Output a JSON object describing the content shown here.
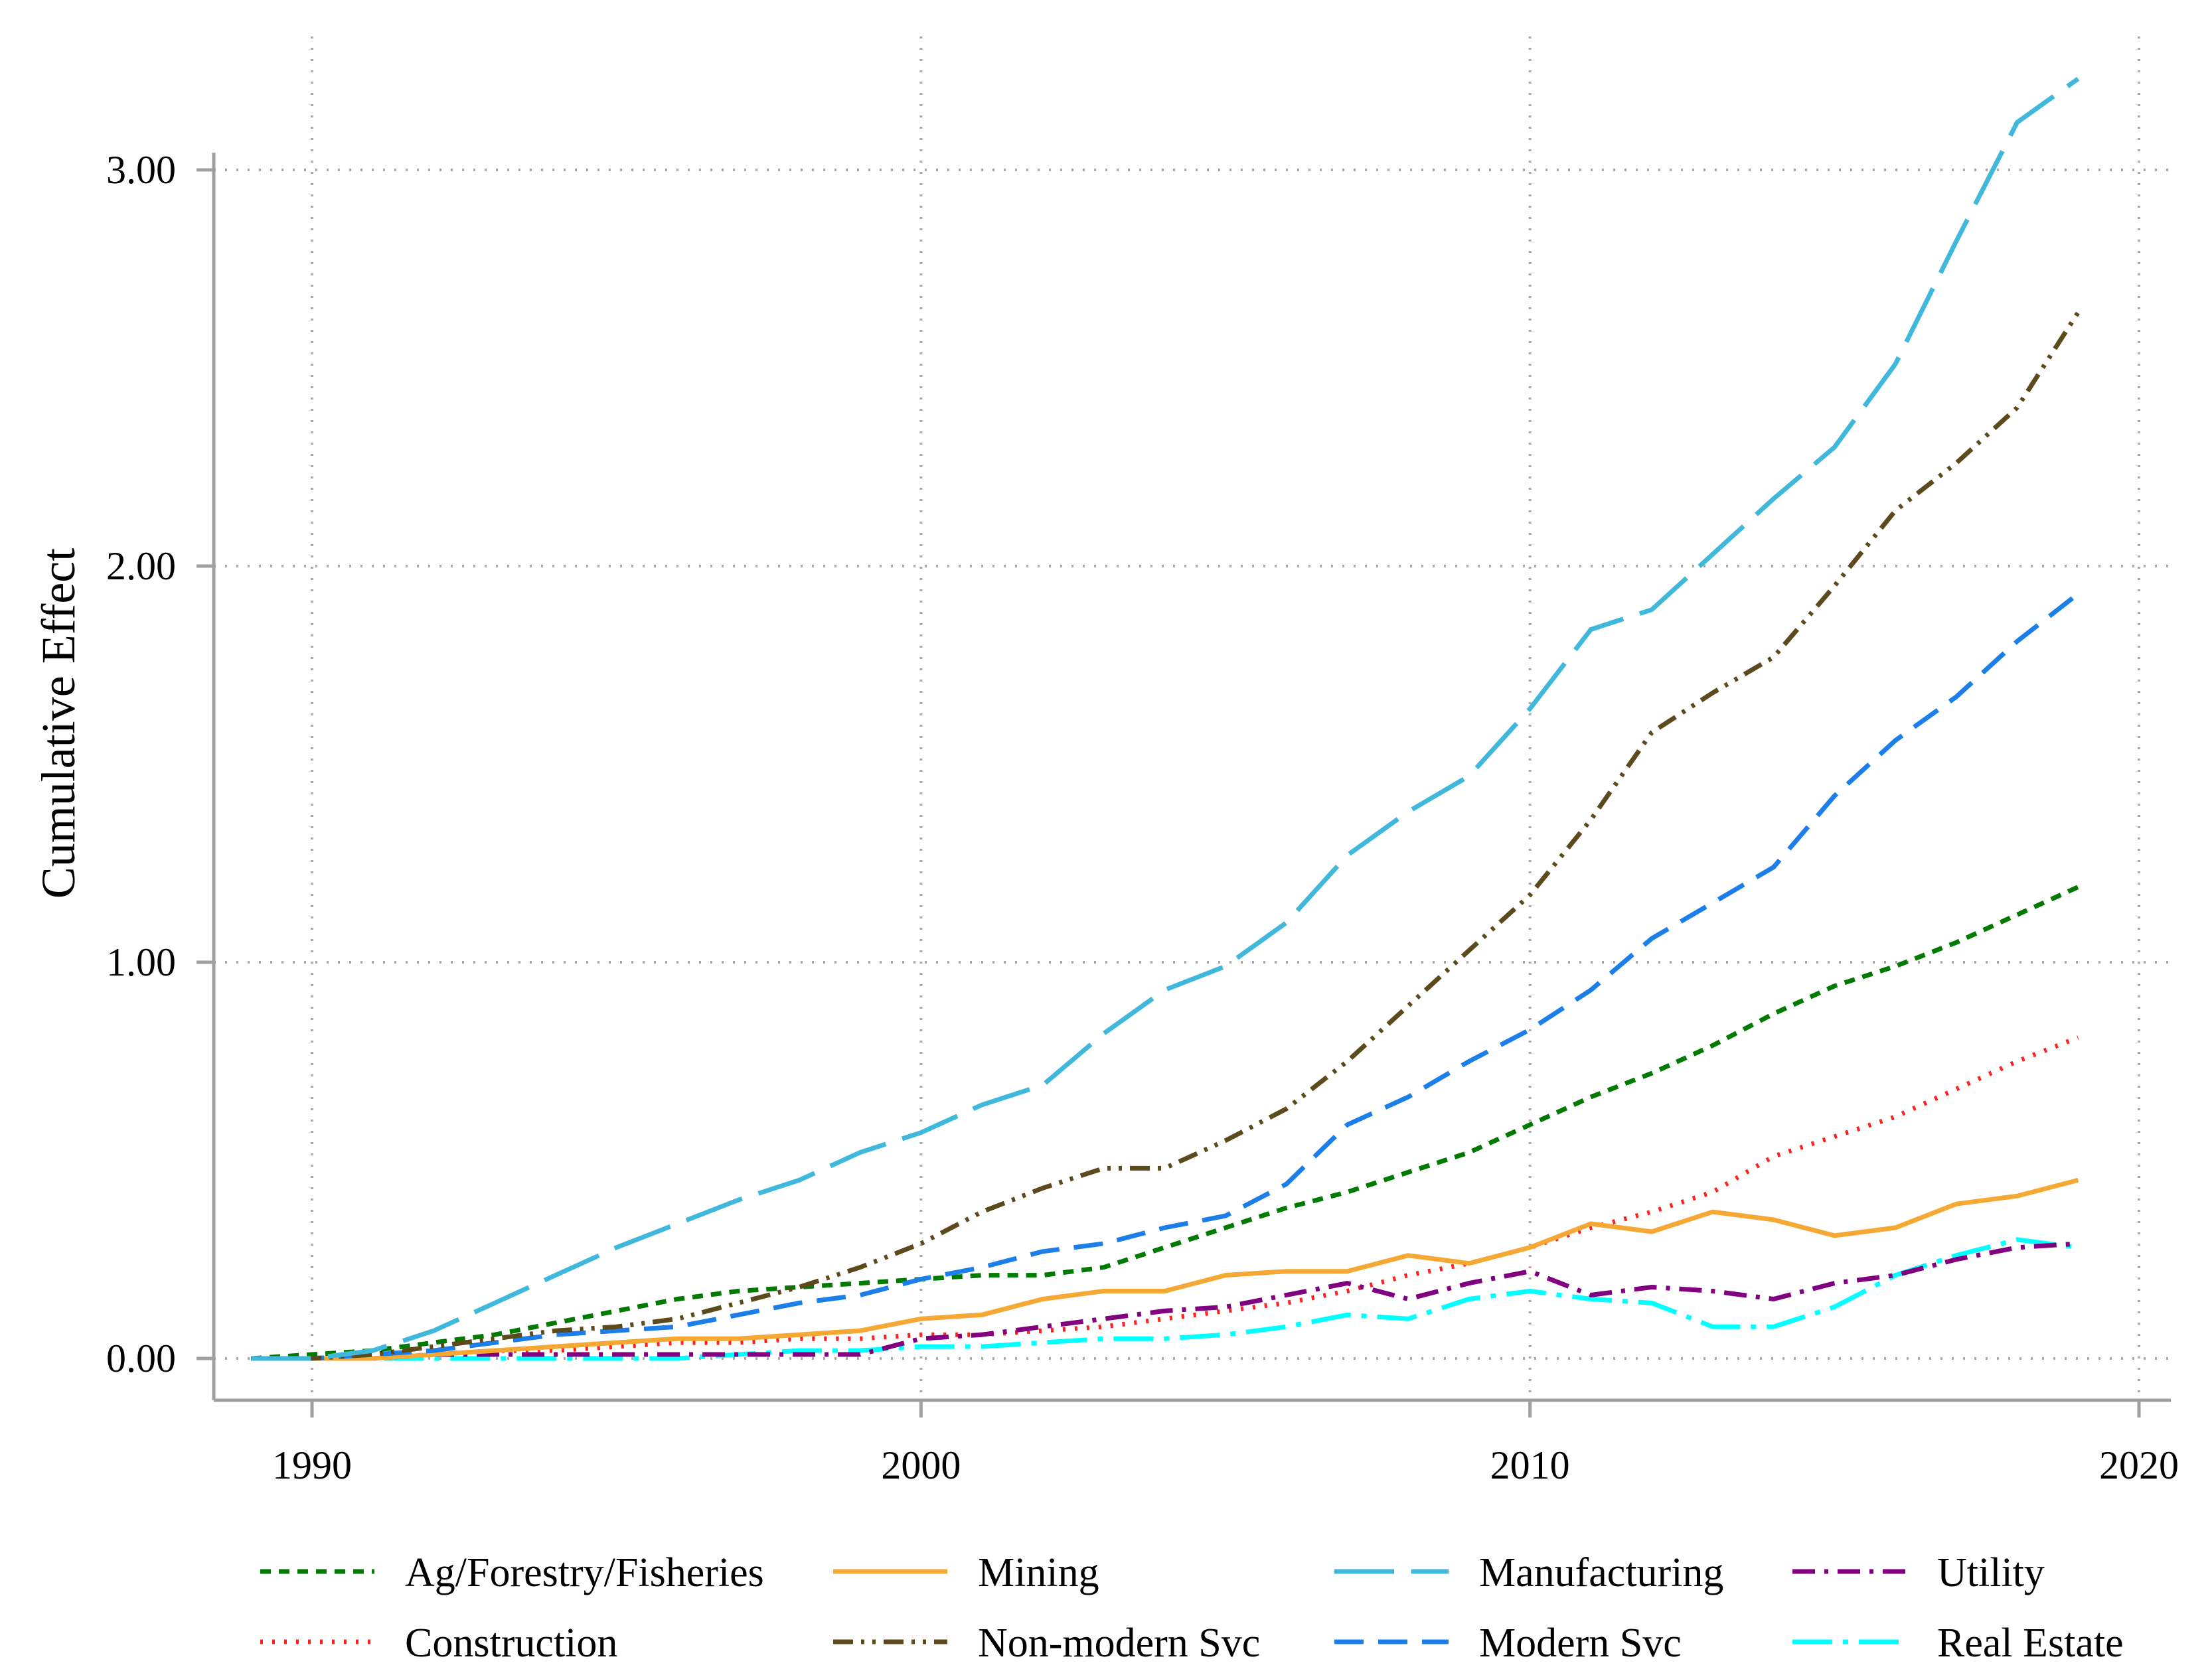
{
  "chart_data": {
    "type": "line",
    "title": "",
    "xlabel": "",
    "ylabel": "Cumulative Effect",
    "xlim": [
      1988.9,
      2020.6
    ],
    "ylim": [
      -0.1,
      3.4
    ],
    "xticks": [
      1990,
      2000,
      2010,
      2020
    ],
    "xtick_labels": [
      "1990",
      "2000",
      "2010",
      "2020"
    ],
    "yticks": [
      0,
      1,
      2,
      3
    ],
    "ytick_labels": [
      "0.00",
      "1.00",
      "2.00",
      "3.00"
    ],
    "grid": true,
    "legend_position": "bottom",
    "x": [
      1989,
      1990,
      1991,
      1992,
      1993,
      1994,
      1995,
      1996,
      1997,
      1998,
      1999,
      2000,
      2001,
      2002,
      2003,
      2004,
      2005,
      2006,
      2007,
      2008,
      2009,
      2010,
      2011,
      2012,
      2013,
      2014,
      2015,
      2016,
      2017,
      2018,
      2019
    ],
    "series": [
      {
        "name": "Ag/Forestry/Fisheries",
        "color": "#007a00",
        "dash": "short-dash",
        "values": [
          0.0,
          0.01,
          0.02,
          0.04,
          0.06,
          0.09,
          0.12,
          0.15,
          0.17,
          0.18,
          0.19,
          0.2,
          0.21,
          0.21,
          0.23,
          0.28,
          0.33,
          0.38,
          0.42,
          0.47,
          0.52,
          0.59,
          0.66,
          0.72,
          0.79,
          0.87,
          0.94,
          0.99,
          1.05,
          1.12,
          1.19
        ]
      },
      {
        "name": "Mining",
        "color": "#f5a833",
        "dash": "solid",
        "values": [
          0.0,
          0.0,
          0.0,
          0.01,
          0.02,
          0.03,
          0.04,
          0.05,
          0.05,
          0.06,
          0.07,
          0.1,
          0.11,
          0.15,
          0.17,
          0.17,
          0.21,
          0.22,
          0.22,
          0.26,
          0.24,
          0.28,
          0.34,
          0.32,
          0.37,
          0.35,
          0.31,
          0.33,
          0.39,
          0.41,
          0.45
        ]
      },
      {
        "name": "Manufacturing",
        "color": "#40b8dc",
        "dash": "long-dash",
        "values": [
          0.0,
          0.0,
          0.02,
          0.07,
          0.14,
          0.21,
          0.28,
          0.34,
          0.4,
          0.45,
          0.52,
          0.57,
          0.64,
          0.69,
          0.82,
          0.93,
          0.99,
          1.1,
          1.27,
          1.38,
          1.47,
          1.64,
          1.84,
          1.89,
          2.03,
          2.17,
          2.3,
          2.51,
          2.82,
          3.12,
          3.23
        ]
      },
      {
        "name": "Utility",
        "color": "#800080",
        "dash": "dash-dot",
        "values": [
          0.0,
          0.0,
          0.0,
          0.01,
          0.01,
          0.01,
          0.01,
          0.01,
          0.01,
          0.01,
          0.01,
          0.05,
          0.06,
          0.08,
          0.1,
          0.12,
          0.13,
          0.16,
          0.19,
          0.15,
          0.19,
          0.22,
          0.16,
          0.18,
          0.17,
          0.15,
          0.19,
          0.21,
          0.25,
          0.28,
          0.29
        ]
      },
      {
        "name": "Construction",
        "color": "#ff2020",
        "dash": "dotted",
        "values": [
          0.0,
          0.0,
          0.0,
          0.01,
          0.02,
          0.02,
          0.03,
          0.04,
          0.04,
          0.05,
          0.05,
          0.06,
          0.06,
          0.07,
          0.08,
          0.1,
          0.12,
          0.14,
          0.17,
          0.21,
          0.24,
          0.28,
          0.33,
          0.37,
          0.42,
          0.51,
          0.56,
          0.61,
          0.68,
          0.75,
          0.81
        ]
      },
      {
        "name": "Non-modern Svc",
        "color": "#5c4a1c",
        "dash": "dash-dot-dot",
        "values": [
          0.0,
          0.0,
          0.01,
          0.03,
          0.05,
          0.07,
          0.08,
          0.1,
          0.14,
          0.18,
          0.23,
          0.29,
          0.37,
          0.43,
          0.48,
          0.48,
          0.55,
          0.63,
          0.75,
          0.89,
          1.03,
          1.17,
          1.36,
          1.58,
          1.68,
          1.77,
          1.95,
          2.14,
          2.26,
          2.4,
          2.64
        ]
      },
      {
        "name": "Modern Svc",
        "color": "#1c7ee8",
        "dash": "medium-dash",
        "values": [
          0.0,
          0.0,
          0.01,
          0.02,
          0.04,
          0.06,
          0.07,
          0.08,
          0.11,
          0.14,
          0.16,
          0.2,
          0.23,
          0.27,
          0.29,
          0.33,
          0.36,
          0.44,
          0.59,
          0.66,
          0.75,
          0.83,
          0.93,
          1.06,
          1.15,
          1.24,
          1.42,
          1.56,
          1.67,
          1.81,
          1.93
        ]
      },
      {
        "name": "Real Estate",
        "color": "#00ffff",
        "dash": "long-dash-dot",
        "values": [
          0.0,
          0.0,
          0.0,
          0.0,
          0.0,
          0.0,
          0.0,
          0.0,
          0.01,
          0.02,
          0.02,
          0.03,
          0.03,
          0.04,
          0.05,
          0.05,
          0.06,
          0.08,
          0.11,
          0.1,
          0.15,
          0.17,
          0.15,
          0.14,
          0.08,
          0.08,
          0.13,
          0.21,
          0.26,
          0.3,
          0.28
        ]
      }
    ]
  }
}
